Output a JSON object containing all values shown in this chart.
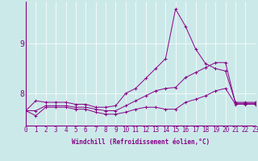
{
  "xlabel": "Windchill (Refroidissement éolien,°C)",
  "background_color": "#cce9e9",
  "line_color": "#880088",
  "x_values": [
    0,
    1,
    2,
    3,
    4,
    5,
    6,
    7,
    8,
    9,
    10,
    11,
    12,
    13,
    14,
    15,
    16,
    17,
    18,
    19,
    20,
    21,
    22,
    23
  ],
  "y_line1": [
    7.65,
    7.85,
    7.82,
    7.82,
    7.82,
    7.78,
    7.78,
    7.72,
    7.72,
    7.75,
    8.0,
    8.1,
    8.3,
    8.5,
    8.7,
    9.7,
    9.35,
    8.9,
    8.6,
    8.5,
    8.45,
    7.82,
    7.82,
    7.82
  ],
  "y_line2": [
    7.65,
    7.55,
    7.72,
    7.72,
    7.72,
    7.68,
    7.68,
    7.62,
    7.58,
    7.58,
    7.62,
    7.68,
    7.72,
    7.72,
    7.68,
    7.68,
    7.82,
    7.88,
    7.95,
    8.05,
    8.1,
    7.78,
    7.78,
    7.78
  ],
  "y_line3": [
    7.65,
    7.65,
    7.75,
    7.75,
    7.75,
    7.72,
    7.72,
    7.68,
    7.65,
    7.65,
    7.75,
    7.85,
    7.95,
    8.05,
    8.1,
    8.12,
    8.32,
    8.42,
    8.52,
    8.62,
    8.62,
    7.8,
    7.8,
    7.8
  ],
  "ylim": [
    7.35,
    9.85
  ],
  "xlim": [
    0,
    23
  ],
  "yticks": [
    8,
    9
  ],
  "xticks": [
    0,
    1,
    2,
    3,
    4,
    5,
    6,
    7,
    8,
    9,
    10,
    11,
    12,
    13,
    14,
    15,
    16,
    17,
    18,
    19,
    20,
    21,
    22,
    23
  ],
  "grid_color": "#ffffff",
  "tick_fontsize": 5.5,
  "ytick_fontsize": 7,
  "xlabel_fontsize": 5.5
}
